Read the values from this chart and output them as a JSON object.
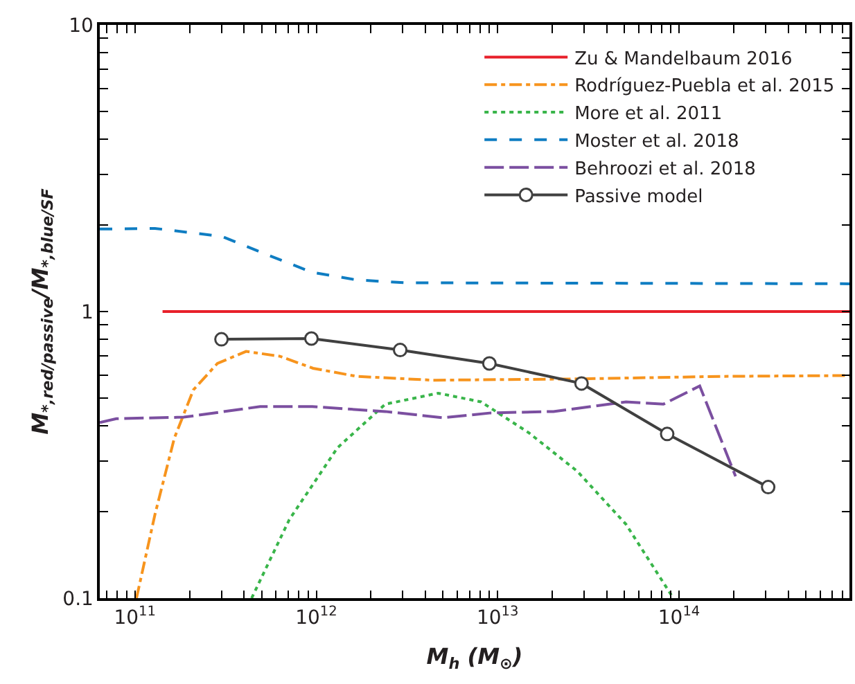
{
  "chart_data": {
    "type": "line",
    "xlabel": "M$_{h}$ (M$_{⊙}$)",
    "ylabel": "M$_{*,red/passive}$/M$_{*,blue/SF}$",
    "log": "xy",
    "legend": "top right",
    "xlim": [
      64000000000.0,
      870000000000000.0
    ],
    "xticks": [
      {
        "value": 70000000000.0,
        "label": null
      },
      {
        "value": 80000000000.0,
        "label": null
      },
      {
        "value": 90000000000.0,
        "label": null
      },
      {
        "value": 100000000000.0,
        "label": "10$^{11}$"
      },
      {
        "value": 200000000000.0,
        "label": null
      },
      {
        "value": 300000000000.0,
        "label": null
      },
      {
        "value": 400000000000.0,
        "label": null
      },
      {
        "value": 500000000000.0,
        "label": null
      },
      {
        "value": 600000000000.0,
        "label": null
      },
      {
        "value": 700000000000.0,
        "label": null
      },
      {
        "value": 800000000000.0,
        "label": null
      },
      {
        "value": 900000000000.0,
        "label": null
      },
      {
        "value": 1000000000000.0,
        "label": "10$^{12}$"
      },
      {
        "value": 2000000000000.0,
        "label": null
      },
      {
        "value": 3000000000000.0,
        "label": null
      },
      {
        "value": 4000000000000.0,
        "label": null
      },
      {
        "value": 5000000000000.0,
        "label": null
      },
      {
        "value": 6000000000000.0,
        "label": null
      },
      {
        "value": 7000000000000.0,
        "label": null
      },
      {
        "value": 8000000000000.0,
        "label": null
      },
      {
        "value": 9000000000000.0,
        "label": null
      },
      {
        "value": 10000000000000.0,
        "label": "10$^{13}$"
      },
      {
        "value": 20000000000000.0,
        "label": null
      },
      {
        "value": 30000000000000.0,
        "label": null
      },
      {
        "value": 40000000000000.0,
        "label": null
      },
      {
        "value": 50000000000000.0,
        "label": null
      },
      {
        "value": 60000000000000.0,
        "label": null
      },
      {
        "value": 70000000000000.0,
        "label": null
      },
      {
        "value": 80000000000000.0,
        "label": null
      },
      {
        "value": 90000000000000.0,
        "label": null
      },
      {
        "value": 100000000000000.0,
        "label": "10$^{14}$"
      },
      {
        "value": 200000000000000.0,
        "label": null
      },
      {
        "value": 300000000000000.0,
        "label": null
      },
      {
        "value": 400000000000000.0,
        "label": null
      },
      {
        "value": 500000000000000.0,
        "label": null
      },
      {
        "value": 600000000000000.0,
        "label": null
      },
      {
        "value": 700000000000000.0,
        "label": null
      },
      {
        "value": 800000000000000.0,
        "label": null
      }
    ],
    "ylim": [
      0.1,
      10
    ],
    "yticks": [
      0.1,
      {
        "value": 0.2,
        "label": null
      },
      {
        "value": 0.3,
        "label": null
      },
      {
        "value": 0.4,
        "label": null
      },
      {
        "value": 0.5,
        "label": null
      },
      {
        "value": 0.6,
        "label": null
      },
      {
        "value": 0.7,
        "label": null
      },
      {
        "value": 0.8,
        "label": null
      },
      {
        "value": 0.9,
        "label": null
      },
      1,
      {
        "value": 2,
        "label": null
      },
      {
        "value": 3,
        "label": null
      },
      {
        "value": 4,
        "label": null
      },
      {
        "value": 5,
        "label": null
      },
      {
        "value": 6,
        "label": null
      },
      {
        "value": 7,
        "label": null
      },
      {
        "value": 8,
        "label": null
      },
      {
        "value": 9,
        "label": null
      },
      10
    ],
    "series": [
      {
        "name": "Zu & Mandelbaum 2016",
        "color": "#e8202a",
        "line_style": "solid",
        "marker": "none",
        "x": [
          142000000000.0,
          870000000000000.0
        ],
        "values": [
          1,
          1
        ]
      },
      {
        "name": "Rodríguez-Puebla et al. 2015",
        "color": "#f7941d",
        "line_style": "dashdot",
        "marker": "none",
        "x": [
          102000000000.0,
          129000000000.0,
          165000000000.0,
          210000000000.0,
          285000000000.0,
          410000000000.0,
          630000000000.0,
          960000000000.0,
          1670000000000.0,
          4400000000000.0,
          27500000000000.0,
          171000000000000.0,
          870000000000000.0
        ],
        "values": [
          0.1,
          0.196,
          0.362,
          0.533,
          0.659,
          0.726,
          0.698,
          0.634,
          0.594,
          0.576,
          0.582,
          0.594,
          0.598
        ]
      },
      {
        "name": "More et al. 2011",
        "color": "#39b54a",
        "line_style": "dotted",
        "marker": "none",
        "x": [
          440000000000.0,
          710000000000.0,
          1310000000000.0,
          2400000000000.0,
          4700000000000.0,
          8100000000000.0,
          14900000000000.0,
          27500000000000.0,
          51000000000000.0,
          93000000000000.0
        ],
        "values": [
          0.1,
          0.188,
          0.335,
          0.475,
          0.519,
          0.484,
          0.377,
          0.277,
          0.181,
          0.1
        ]
      },
      {
        "name": "Moster et al. 2018",
        "color": "#0f7dc2",
        "line_style": "dashed",
        "marker": "none",
        "x": [
          64000000000.0,
          129000000000.0,
          300000000000.0,
          520000000000.0,
          950000000000.0,
          1660000000000.0,
          3100000000000.0,
          870000000000000.0
        ],
        "values": [
          1.94,
          1.95,
          1.83,
          1.59,
          1.37,
          1.29,
          1.26,
          1.25
        ]
      },
      {
        "name": "Behroozi et al. 2018",
        "color": "#7b4fa0",
        "line_style": "longdash",
        "marker": "none",
        "x": [
          64000000000.0,
          79000000000.0,
          186000000000.0,
          490000000000.0,
          950000000000.0,
          2400000000000.0,
          5000000000000.0,
          9200000000000.0,
          20300000000000.0,
          51000000000000.0,
          82000000000000.0,
          130000000000000.0,
          205000000000000.0
        ],
        "values": [
          0.41,
          0.423,
          0.428,
          0.466,
          0.466,
          0.448,
          0.426,
          0.443,
          0.448,
          0.484,
          0.475,
          0.55,
          0.266
        ]
      },
      {
        "name": "Passive model",
        "color": "#404040",
        "line_style": "solid",
        "marker": "circle",
        "x": [
          300000000000.0,
          940000000000.0,
          2900000000000.0,
          9000000000000.0,
          29000000000000.0,
          86000000000000.0,
          310000000000000.0
        ],
        "values": [
          0.8,
          0.805,
          0.734,
          0.659,
          0.561,
          0.374,
          0.244
        ]
      }
    ]
  }
}
